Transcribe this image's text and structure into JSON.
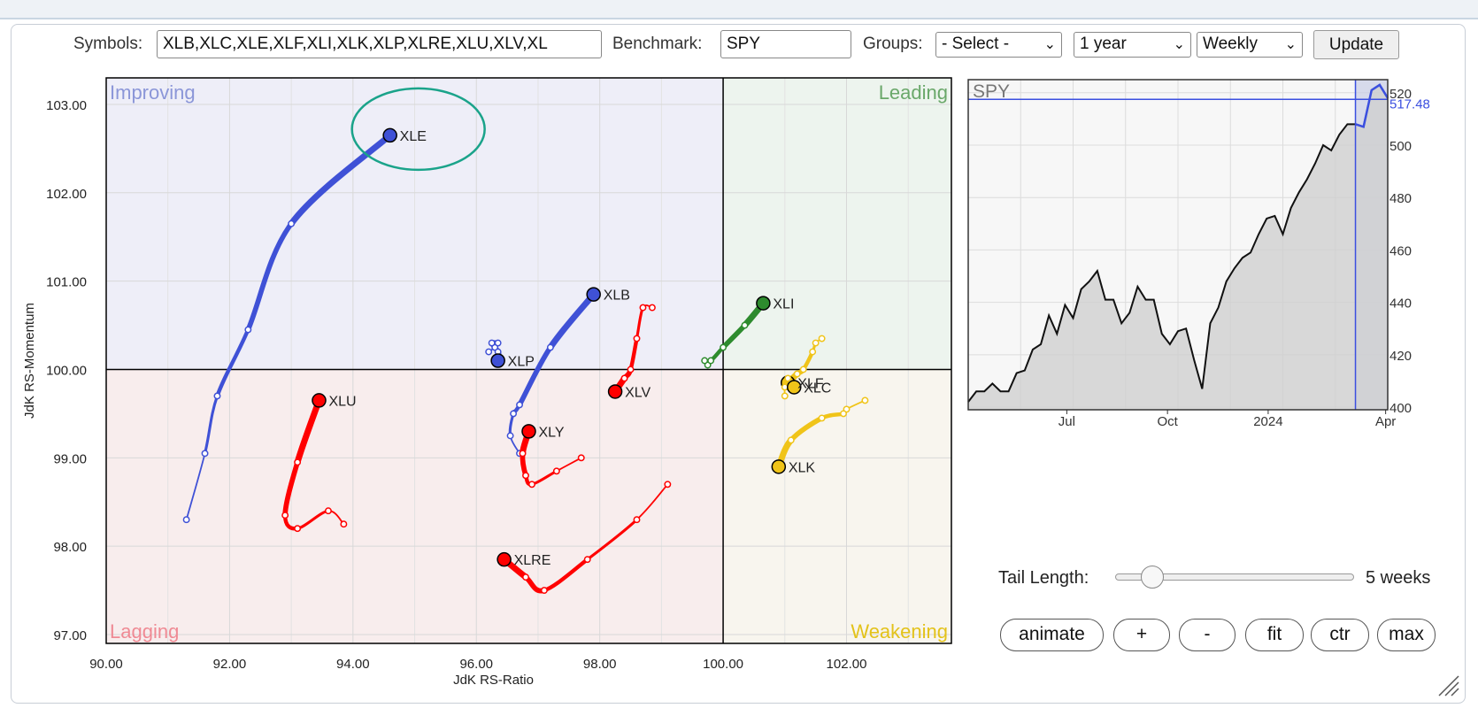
{
  "controls": {
    "symbols_label": "Symbols:",
    "symbols_value": "XLB,XLC,XLE,XLF,XLI,XLK,XLP,XLRE,XLU,XLV,XL",
    "benchmark_label": "Benchmark:",
    "benchmark_value": "SPY",
    "groups_label": "Groups:",
    "groups_selected": "- Select -",
    "period_selected": "1 year",
    "frequency_selected": "Weekly",
    "update_label": "Update",
    "tail_label": "Tail Length:",
    "tail_value": "5 weeks",
    "tail_weeks": 5,
    "buttons": [
      "animate",
      "+",
      "-",
      "fit",
      "ctr",
      "max"
    ]
  },
  "chart_data": [
    {
      "type": "scatter",
      "chart": "relative-rotation-graph",
      "xlabel": "JdK RS-Ratio",
      "ylabel": "JdK RS-Momentum",
      "xlim": [
        90.0,
        103.7
      ],
      "ylim": [
        96.9,
        103.3
      ],
      "x_ticks": [
        "90.00",
        "92.00",
        "94.00",
        "96.00",
        "98.00",
        "100.00",
        "102.00"
      ],
      "y_ticks": [
        "97.00",
        "98.00",
        "99.00",
        "100.00",
        "101.00",
        "102.00",
        "103.00"
      ],
      "center": [
        100,
        100
      ],
      "grid": true,
      "quadrants": [
        {
          "name": "Improving",
          "color": "#8b96d8",
          "fill": "#eeeef8"
        },
        {
          "name": "Leading",
          "color": "#6aa86a",
          "fill": "#edf4ee"
        },
        {
          "name": "Lagging",
          "color": "#ef8a94",
          "fill": "#f8eded"
        },
        {
          "name": "Weakening",
          "color": "#e3c21a",
          "fill": "#f8f5ee"
        }
      ],
      "highlight_symbol": "XLE",
      "series": [
        {
          "name": "XLE",
          "color": "#3f51d6",
          "x": [
            91.3,
            91.6,
            91.8,
            92.3,
            93.0,
            94.6
          ],
          "y": [
            98.3,
            99.05,
            99.7,
            100.45,
            101.65,
            102.65
          ]
        },
        {
          "name": "XLB",
          "color": "#3f51d6",
          "x": [
            96.7,
            96.55,
            96.6,
            96.7,
            97.2,
            97.9
          ],
          "y": [
            99.05,
            99.25,
            99.5,
            99.6,
            100.25,
            100.85
          ]
        },
        {
          "name": "XLP",
          "color": "#3f51d6",
          "x": [
            96.2,
            96.3,
            96.35,
            96.25,
            96.35,
            96.35
          ],
          "y": [
            100.2,
            100.25,
            100.3,
            100.3,
            100.2,
            100.1
          ]
        },
        {
          "name": "XLI",
          "color": "#2e8b2e",
          "x": [
            99.75,
            99.7,
            99.8,
            100.0,
            100.35,
            100.65
          ],
          "y": [
            100.05,
            100.1,
            100.1,
            100.25,
            100.5,
            100.75
          ]
        },
        {
          "name": "XLV",
          "color": "#ff0000",
          "x": [
            98.85,
            98.7,
            98.6,
            98.5,
            98.4,
            98.25
          ],
          "y": [
            100.7,
            100.7,
            100.35,
            100.0,
            99.9,
            99.75
          ]
        },
        {
          "name": "XLU",
          "color": "#ff0000",
          "x": [
            93.85,
            93.6,
            93.1,
            92.9,
            93.1,
            93.45
          ],
          "y": [
            98.25,
            98.4,
            98.2,
            98.35,
            98.95,
            99.65
          ]
        },
        {
          "name": "XLY",
          "color": "#ff0000",
          "x": [
            97.7,
            97.3,
            96.9,
            96.8,
            96.75,
            96.85
          ],
          "y": [
            99.0,
            98.85,
            98.7,
            98.8,
            99.05,
            99.3
          ]
        },
        {
          "name": "XLRE",
          "color": "#ff0000",
          "x": [
            99.1,
            98.6,
            97.8,
            97.1,
            96.8,
            96.45
          ],
          "y": [
            98.7,
            98.3,
            97.85,
            97.5,
            97.65,
            97.85
          ]
        },
        {
          "name": "XLF",
          "color": "#f0c419",
          "x": [
            101.6,
            101.5,
            101.45,
            101.3,
            101.2,
            101.05
          ],
          "y": [
            100.35,
            100.3,
            100.2,
            100.0,
            99.95,
            99.85
          ]
        },
        {
          "name": "XLC",
          "color": "#f0c419",
          "x": [
            101.0,
            101.0,
            101.05,
            101.1,
            101.15,
            101.15
          ],
          "y": [
            99.7,
            99.8,
            99.9,
            99.85,
            99.8,
            99.8
          ]
        },
        {
          "name": "XLK",
          "color": "#f0c419",
          "x": [
            102.3,
            102.0,
            101.95,
            101.6,
            101.1,
            100.9
          ],
          "y": [
            99.65,
            99.55,
            99.5,
            99.45,
            99.2,
            98.9
          ]
        }
      ]
    },
    {
      "type": "area",
      "title": "SPY",
      "x_tick_labels": [
        "Jul",
        "Oct",
        "2024",
        "Apr"
      ],
      "y_ticks": [
        "400",
        "420",
        "440",
        "460",
        "480",
        "500",
        "520"
      ],
      "ylim": [
        399,
        525
      ],
      "last_value_label": "517.48",
      "last_value": 517.48,
      "y": [
        402,
        406,
        406,
        409,
        406,
        406,
        413,
        414,
        422,
        424,
        435,
        428,
        439,
        434,
        445,
        448,
        452,
        441,
        441,
        432,
        436,
        446,
        441,
        441,
        428,
        424,
        429,
        430,
        418,
        407,
        432,
        438,
        448,
        453,
        457,
        459,
        466,
        472,
        473,
        466,
        476,
        482,
        487,
        493,
        500,
        498,
        504,
        508,
        508,
        507,
        521,
        523,
        518
      ]
    }
  ]
}
